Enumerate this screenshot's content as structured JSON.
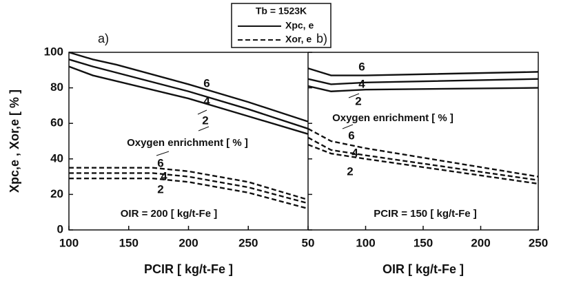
{
  "legend": {
    "title": "Tb = 1523K",
    "entries": [
      {
        "label": "Xpc, e",
        "style": "solid"
      },
      {
        "label": "Xor, e",
        "style": "dashed"
      }
    ]
  },
  "chart_data": [
    {
      "type": "line",
      "panel_label": "a)",
      "ylabel": "Xpc,e , Xor,e  [ % ]",
      "xlabel": "PCIR  [ kg/t-Fe ]",
      "annotations": [
        "Oxygen enrichment [ % ]",
        "OIR = 200 [ kg/t-Fe ]"
      ],
      "xlim": [
        100,
        300
      ],
      "xticks": [
        100,
        150,
        200,
        250
      ],
      "ylim": [
        0,
        100
      ],
      "yticks": [
        0,
        20,
        40,
        60,
        80,
        100
      ],
      "series": [
        {
          "name": "6",
          "style": "solid",
          "x": [
            100,
            120,
            140,
            200,
            250,
            300
          ],
          "values": [
            100,
            96,
            93,
            82,
            72,
            61
          ]
        },
        {
          "name": "4",
          "style": "solid",
          "x": [
            100,
            120,
            200,
            250,
            300
          ],
          "values": [
            96,
            92,
            78,
            68,
            57
          ]
        },
        {
          "name": "2",
          "style": "solid",
          "x": [
            100,
            120,
            200,
            250,
            300
          ],
          "values": [
            92,
            87,
            74,
            64,
            54
          ]
        },
        {
          "name": "6",
          "style": "dashed",
          "x": [
            100,
            170,
            200,
            250,
            300
          ],
          "values": [
            35,
            35,
            33,
            27,
            17
          ]
        },
        {
          "name": "4",
          "style": "dashed",
          "x": [
            100,
            170,
            200,
            250,
            300
          ],
          "values": [
            32,
            32,
            30,
            24,
            15
          ]
        },
        {
          "name": "2",
          "style": "dashed",
          "x": [
            100,
            170,
            200,
            250,
            300
          ],
          "values": [
            29,
            29,
            27,
            21,
            12
          ]
        }
      ]
    },
    {
      "type": "line",
      "panel_label": "b)",
      "xlabel": "OIR  [ kg/t-Fe ]",
      "annotations": [
        "Oxygen enrichment [ % ]",
        "PCIR = 150 [ kg/t-Fe ]"
      ],
      "xlim": [
        50,
        250
      ],
      "xticks": [
        50,
        100,
        150,
        200,
        250
      ],
      "ylim": [
        0,
        100
      ],
      "series": [
        {
          "name": "6",
          "style": "solid",
          "x": [
            50,
            70,
            100,
            250
          ],
          "values": [
            91,
            87,
            87,
            89
          ]
        },
        {
          "name": "4",
          "style": "solid",
          "x": [
            50,
            70,
            100,
            250
          ],
          "values": [
            85,
            82,
            83,
            85
          ]
        },
        {
          "name": "2",
          "style": "solid",
          "x": [
            50,
            70,
            100,
            250
          ],
          "values": [
            81,
            78,
            79,
            80
          ]
        },
        {
          "name": "6",
          "style": "dashed",
          "x": [
            50,
            70,
            100,
            250
          ],
          "values": [
            57,
            50,
            46,
            30
          ]
        },
        {
          "name": "4",
          "style": "dashed",
          "x": [
            50,
            70,
            100,
            250
          ],
          "values": [
            52,
            45,
            42,
            28
          ]
        },
        {
          "name": "2",
          "style": "dashed",
          "x": [
            50,
            70,
            100,
            250
          ],
          "values": [
            48,
            43,
            40,
            26
          ]
        }
      ]
    }
  ]
}
